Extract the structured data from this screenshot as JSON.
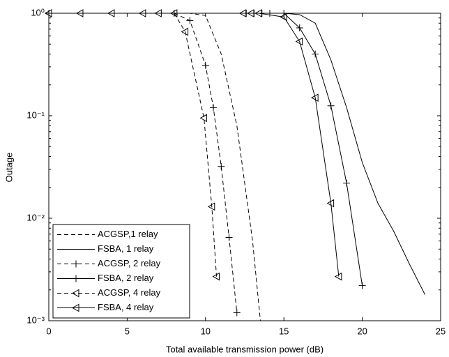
{
  "chart_data": {
    "type": "line",
    "xlabel": "Total available transmission power (dB)",
    "ylabel": "Outage",
    "xlim": [
      0,
      25
    ],
    "xticks": [
      0,
      5,
      10,
      15,
      20,
      25
    ],
    "ylim": [
      0.001,
      1
    ],
    "yticks": [
      {
        "value": 1,
        "label": "10⁰"
      },
      {
        "value": 0.1,
        "label": "10⁻¹"
      },
      {
        "value": 0.01,
        "label": "10⁻²"
      },
      {
        "value": 0.001,
        "label": "10⁻³"
      }
    ],
    "log_y": true,
    "grid": false,
    "legend": "lower left",
    "series": [
      {
        "name": "ACGSP,1 relay",
        "color": "#000000",
        "dash": true,
        "marker": null,
        "x": [
          0,
          9,
          10,
          11,
          12,
          13,
          13.5
        ],
        "values": [
          1,
          1,
          0.95,
          0.4,
          0.08,
          0.006,
          0.001
        ]
      },
      {
        "name": "FSBA, 1 relay",
        "color": "#000000",
        "dash": false,
        "marker": null,
        "x": [
          0,
          15,
          16,
          17,
          18,
          19,
          20,
          21,
          22,
          23,
          24
        ],
        "values": [
          1,
          1,
          0.97,
          0.8,
          0.35,
          0.12,
          0.035,
          0.014,
          0.0075,
          0.0036,
          0.0018
        ]
      },
      {
        "name": "ACGSP, 2 relay",
        "color": "#000000",
        "dash": true,
        "marker": "plus",
        "x": [
          0,
          8,
          9,
          10,
          10.5,
          11,
          11.5,
          12
        ],
        "values": [
          1,
          1,
          0.85,
          0.31,
          0.12,
          0.032,
          0.0065,
          0.0012
        ]
      },
      {
        "name": "FSBA, 2 relay",
        "color": "#000000",
        "dash": false,
        "marker": "plus",
        "x": [
          0,
          12.6,
          13.1,
          13.6,
          14.1,
          15,
          16,
          17,
          18,
          19,
          20
        ],
        "values": [
          1,
          1,
          1,
          1,
          1,
          1,
          0.72,
          0.4,
          0.125,
          0.022,
          0.0022
        ]
      },
      {
        "name": "ACGSP, 4 relay",
        "color": "#000000",
        "dash": true,
        "marker": "triangle-left",
        "x": [
          0,
          2,
          4,
          6,
          7,
          8,
          8.7,
          9.9,
          10.4,
          10.7
        ],
        "values": [
          1,
          1,
          1,
          1,
          1,
          1,
          0.66,
          0.095,
          0.013,
          0.0027
        ]
      },
      {
        "name": "FSBA, 4 relay",
        "color": "#000000",
        "dash": false,
        "marker": "triangle-left",
        "x": [
          0,
          12.4,
          12.9,
          13.4,
          15,
          16,
          17,
          18,
          18.5
        ],
        "values": [
          1,
          1,
          1,
          1,
          0.92,
          0.53,
          0.15,
          0.014,
          0.0027
        ]
      }
    ]
  }
}
